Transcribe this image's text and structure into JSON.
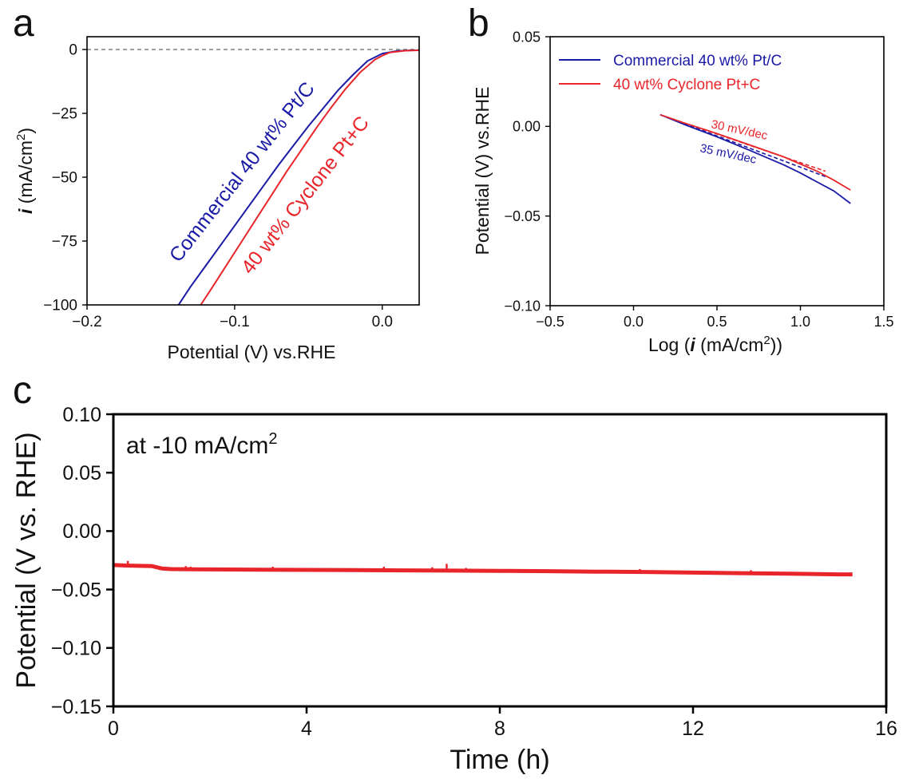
{
  "colors": {
    "blue": "#1a1aa6",
    "red": "#e8252b",
    "axis": "#000000",
    "zero_line": "#666666"
  },
  "chart_data": [
    {
      "id": "a",
      "panel_label": "a",
      "type": "line",
      "xlabel": "Potential (V) vs.RHE",
      "ylabel_symbol": "i",
      "ylabel_unit": " (mA/cm",
      "ylabel_sup": "2",
      "ylabel_close": ")",
      "xlim": [
        -0.2,
        0.025
      ],
      "ylim": [
        -100,
        5
      ],
      "xticks": [
        -0.2,
        -0.1,
        0.0
      ],
      "xtick_labels": [
        "−0.2",
        "−0.1",
        "0.0"
      ],
      "yticks": [
        0,
        -25,
        -50,
        -75,
        -100
      ],
      "ytick_labels": [
        "0",
        "−25",
        "−50",
        "−75",
        "−100"
      ],
      "zero_line": true,
      "series": [
        {
          "name": "Commercial 40 wt% Pt/C",
          "color": "#1a1aa6",
          "x": [
            -0.138,
            -0.13,
            -0.12,
            -0.11,
            -0.1,
            -0.09,
            -0.08,
            -0.07,
            -0.06,
            -0.05,
            -0.04,
            -0.03,
            -0.02,
            -0.01,
            0.0,
            0.01,
            0.02,
            0.025
          ],
          "y": [
            -100,
            -93,
            -85,
            -77,
            -69,
            -61,
            -53,
            -45,
            -37.5,
            -30,
            -23,
            -16,
            -10,
            -4.5,
            -1.6,
            -0.6,
            -0.3,
            -0.3
          ]
        },
        {
          "name": "40 wt% Cyclone Pt+C",
          "color": "#e8252b",
          "x": [
            -0.123,
            -0.115,
            -0.105,
            -0.095,
            -0.085,
            -0.075,
            -0.065,
            -0.055,
            -0.045,
            -0.035,
            -0.025,
            -0.015,
            -0.005,
            0.0,
            0.005,
            0.015,
            0.025
          ],
          "y": [
            -100,
            -93,
            -84,
            -75,
            -66,
            -57,
            -48,
            -39.5,
            -31,
            -23,
            -15.5,
            -9,
            -4,
            -2.4,
            -1.2,
            -0.5,
            -0.3
          ]
        }
      ],
      "annotations": [
        {
          "text": "Commercial 40 wt% Pt/C",
          "color": "#1a1aa6"
        },
        {
          "text": "40 wt% Cyclone Pt+C",
          "color": "#e8252b"
        }
      ]
    },
    {
      "id": "b",
      "panel_label": "b",
      "type": "line",
      "xlabel_prefix": "Log (",
      "xlabel_symbol": "i",
      "xlabel_unit": " (mA/cm",
      "xlabel_sup": "2",
      "xlabel_close": "))",
      "ylabel": "Potential (V) vs.RHE",
      "xlim": [
        -0.5,
        1.5
      ],
      "ylim": [
        -0.1,
        0.05
      ],
      "xticks": [
        -0.5,
        0.0,
        0.5,
        1.0,
        1.5
      ],
      "xtick_labels": [
        "−0.5",
        "0.0",
        "0.5",
        "1.0",
        "1.5"
      ],
      "yticks": [
        0.05,
        0.0,
        -0.05,
        -0.1
      ],
      "ytick_labels": [
        "0.05",
        "0.00",
        "−0.05",
        "−0.10"
      ],
      "legend_position": "top-left",
      "series": [
        {
          "name": "Commercial 40 wt% Pt/C",
          "color": "#1a1aa6",
          "x": [
            0.16,
            0.3,
            0.5,
            0.7,
            0.9,
            1.0,
            1.1,
            1.2,
            1.3
          ],
          "y": [
            0.0065,
            0.0012,
            -0.0058,
            -0.0135,
            -0.0215,
            -0.026,
            -0.031,
            -0.036,
            -0.043
          ]
        },
        {
          "name": "40 wt% Cyclone Pt+C",
          "color": "#e8252b",
          "x": [
            0.16,
            0.3,
            0.5,
            0.7,
            0.9,
            1.0,
            1.1,
            1.2,
            1.3
          ],
          "y": [
            0.0065,
            0.002,
            -0.004,
            -0.0105,
            -0.017,
            -0.021,
            -0.025,
            -0.03,
            -0.0355
          ]
        }
      ],
      "fit_lines": [
        {
          "label": "30 mV/dec",
          "color": "#e8252b",
          "x": [
            0.16,
            1.15
          ],
          "y": [
            0.0065,
            -0.025
          ]
        },
        {
          "label": "35 mV/dec",
          "color": "#1a1aa6",
          "x": [
            0.16,
            1.15
          ],
          "y": [
            0.0065,
            -0.028
          ]
        }
      ]
    },
    {
      "id": "c",
      "panel_label": "c",
      "type": "line",
      "xlabel": "Time (h)",
      "ylabel": "Potential (V vs. RHE)",
      "annotation_prefix": "at -10 mA/cm",
      "annotation_sup": "2",
      "xlim": [
        0,
        16
      ],
      "ylim": [
        -0.15,
        0.1
      ],
      "xticks": [
        0,
        4,
        8,
        12,
        16
      ],
      "xtick_labels": [
        "0",
        "4",
        "8",
        "12",
        "16"
      ],
      "yticks": [
        0.1,
        0.05,
        0.0,
        -0.05,
        -0.1,
        -0.15
      ],
      "ytick_labels": [
        "0.10",
        "0.05",
        "0.00",
        "−0.05",
        "−0.10",
        "−0.15"
      ],
      "series": [
        {
          "name": "40 wt% Cyclone Pt+C",
          "color": "#e8252b",
          "x": [
            0,
            0.3,
            0.8,
            1.0,
            1.2,
            2,
            3,
            4,
            5,
            6,
            7,
            8,
            9,
            10,
            11,
            12,
            13,
            14,
            15,
            15.3
          ],
          "y": [
            -0.029,
            -0.0295,
            -0.03,
            -0.032,
            -0.0325,
            -0.0328,
            -0.033,
            -0.0332,
            -0.0334,
            -0.0336,
            -0.0338,
            -0.034,
            -0.0343,
            -0.0347,
            -0.035,
            -0.0355,
            -0.036,
            -0.0365,
            -0.037,
            -0.037
          ]
        }
      ],
      "spikes": [
        {
          "x": 0.3,
          "y": -0.0255
        },
        {
          "x": 1.5,
          "y": -0.03
        },
        {
          "x": 1.6,
          "y": -0.0305
        },
        {
          "x": 3.3,
          "y": -0.0305
        },
        {
          "x": 5.6,
          "y": -0.0305
        },
        {
          "x": 6.6,
          "y": -0.031
        },
        {
          "x": 6.9,
          "y": -0.028
        },
        {
          "x": 7.3,
          "y": -0.0315
        },
        {
          "x": 10.9,
          "y": -0.0325
        },
        {
          "x": 13.2,
          "y": -0.0335
        }
      ]
    }
  ]
}
